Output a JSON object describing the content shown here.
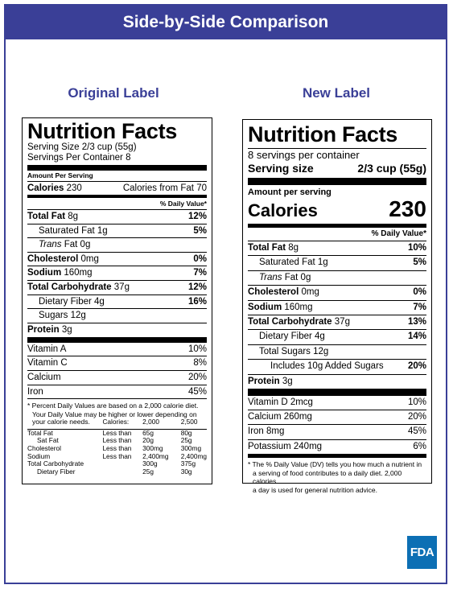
{
  "banner": {
    "title": "Side-by-Side Comparison"
  },
  "original": {
    "heading": "Original Label",
    "title": "Nutrition Facts",
    "serving_size": "Serving Size 2/3 cup (55g)",
    "servings_per_container": "Servings Per Container 8",
    "amount_per_serving": "Amount Per Serving",
    "calories_label": "Calories",
    "calories_value": "230",
    "calories_from_fat": "Calories from Fat 70",
    "dv_header": "% Daily Value*",
    "nutrients": [
      {
        "label": "Total Fat",
        "amount": "8g",
        "dv": "12%"
      },
      {
        "label": "Saturated Fat",
        "amount": "1g",
        "dv": "5%"
      },
      {
        "label": "Trans",
        "amount": "Fat 0g",
        "dv": ""
      },
      {
        "label": "Cholesterol",
        "amount": "0mg",
        "dv": "0%"
      },
      {
        "label": "Sodium",
        "amount": "160mg",
        "dv": "7%"
      },
      {
        "label": "Total Carbohydrate",
        "amount": "37g",
        "dv": "12%"
      },
      {
        "label": "Dietary Fiber",
        "amount": "4g",
        "dv": "16%"
      },
      {
        "label": "Sugars",
        "amount": "12g",
        "dv": ""
      },
      {
        "label": "Protein",
        "amount": "3g",
        "dv": ""
      }
    ],
    "vitamins": [
      {
        "label": "Vitamin A",
        "dv": "10%"
      },
      {
        "label": "Vitamin C",
        "dv": "8%"
      },
      {
        "label": "Calcium",
        "dv": "20%"
      },
      {
        "label": "Iron",
        "dv": "45%"
      }
    ],
    "footnote_1": "* Percent Daily Values are based on a 2,000 calorie diet.",
    "footnote_2": "Your Daily Value may be higher or lower depending on",
    "footnote_3": "your calorie needs.",
    "table": {
      "header": [
        "Calories:",
        "2,000",
        "2,500"
      ],
      "rows": [
        [
          "Total Fat",
          "Less than",
          "65g",
          "80g"
        ],
        [
          "Sat Fat",
          "Less than",
          "20g",
          "25g"
        ],
        [
          "Cholesterol",
          "Less than",
          "300mg",
          "300mg"
        ],
        [
          "Sodium",
          "Less than",
          "2,400mg",
          "2,400mg"
        ],
        [
          "Total Carbohydrate",
          "",
          "300g",
          "375g"
        ],
        [
          "Dietary Fiber",
          "",
          "25g",
          "30g"
        ]
      ]
    }
  },
  "new": {
    "heading": "New Label",
    "title": "Nutrition Facts",
    "servings_per_container": "8 servings per container",
    "serving_size_label": "Serving size",
    "serving_size_value": "2/3 cup (55g)",
    "amount_per_serving": "Amount per serving",
    "calories_label": "Calories",
    "calories_value": "230",
    "dv_header": "% Daily Value*",
    "nutrients": [
      {
        "label": "Total Fat",
        "amount": "8g",
        "dv": "10%"
      },
      {
        "label": "Saturated Fat",
        "amount": "1g",
        "dv": "5%"
      },
      {
        "label": "Trans",
        "amount": "Fat 0g",
        "dv": ""
      },
      {
        "label": "Cholesterol",
        "amount": "0mg",
        "dv": "0%"
      },
      {
        "label": "Sodium",
        "amount": "160mg",
        "dv": "7%"
      },
      {
        "label": "Total Carbohydrate",
        "amount": "37g",
        "dv": "13%"
      },
      {
        "label": "Dietary Fiber",
        "amount": "4g",
        "dv": "14%"
      },
      {
        "label": "Total Sugars",
        "amount": "12g",
        "dv": ""
      },
      {
        "label": "Includes 10g Added Sugars",
        "amount": "",
        "dv": "20%"
      },
      {
        "label": "Protein",
        "amount": "3g",
        "dv": ""
      }
    ],
    "vitamins": [
      {
        "label": "Vitamin D 2mcg",
        "dv": "10%"
      },
      {
        "label": "Calcium 260mg",
        "dv": "20%"
      },
      {
        "label": "Iron 8mg",
        "dv": "45%"
      },
      {
        "label": "Potassium 240mg",
        "dv": "6%"
      }
    ],
    "footnote_1": "* The % Daily Value (DV) tells you how much a nutrient in",
    "footnote_2": "a serving of food contributes to a daily diet. 2,000 calories",
    "footnote_3": "a day is used for general nutrition advice."
  },
  "logo": {
    "text": "FDA"
  },
  "colors": {
    "accent": "#3a3f97",
    "fda_blue": "#0c6fb4"
  }
}
